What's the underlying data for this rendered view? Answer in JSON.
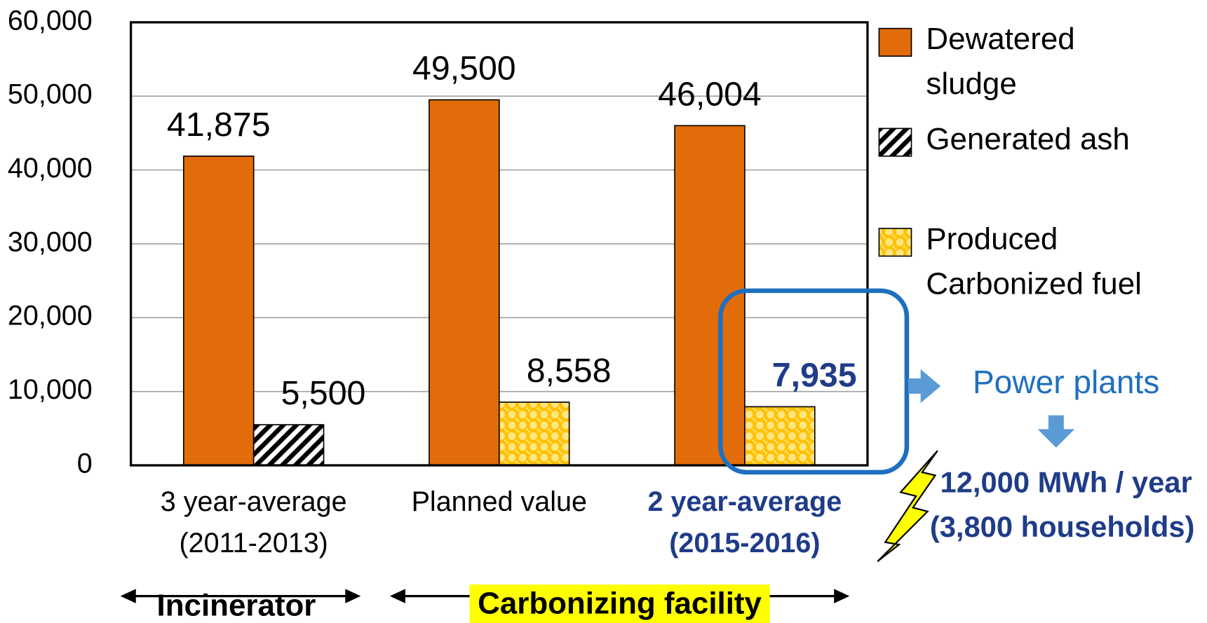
{
  "chart_data": {
    "type": "bar",
    "categories": [
      "3 year-average (2011-2013)",
      "Planned value",
      "2 year-average (2015-2016)"
    ],
    "series": [
      {
        "name": "Dewatered sludge",
        "color": "#e36c0a",
        "pattern": "solid",
        "values": [
          41875,
          49500,
          46004
        ],
        "value_labels": [
          "41,875",
          "49,500",
          "46,004"
        ]
      },
      {
        "name": "Generated ash",
        "color": "#000000",
        "pattern": "hatch",
        "values": [
          5500,
          null,
          null
        ],
        "value_labels": [
          "5,500",
          null,
          null
        ]
      },
      {
        "name": "Produced Carbonized fuel",
        "color": "#ffc000",
        "pattern": "dots",
        "values": [
          null,
          8558,
          7935
        ],
        "value_labels": [
          null,
          "8,558",
          "7,935"
        ]
      }
    ],
    "ylim": [
      0,
      60000
    ],
    "yticks": [
      0,
      {
        "value": 10000,
        "label": "10,000"
      },
      {
        "value": 20000,
        "label": "20,000"
      },
      {
        "value": 30000,
        "label": "30,000"
      },
      {
        "value": 40000,
        "label": "40,000"
      },
      {
        "value": 50000,
        "label": "50,000"
      },
      {
        "value": 60000,
        "label": "60,000"
      }
    ],
    "grid": true,
    "legend": "right",
    "group_labels": [
      "Incinerator",
      "Carbonizing facility"
    ],
    "annotations": [
      "Power plants",
      "12,000 MWh / year",
      "(3,800 households)"
    ]
  }
}
